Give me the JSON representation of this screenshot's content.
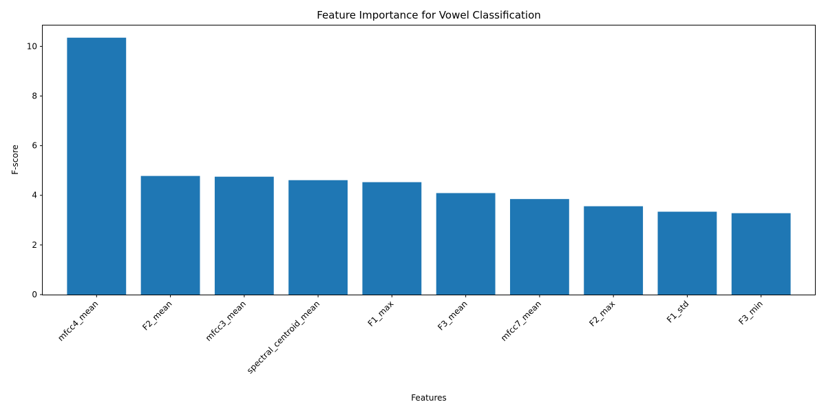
{
  "chart_data": {
    "type": "bar",
    "title": "Feature Importance for Vowel Classification",
    "xlabel": "Features",
    "ylabel": "F-score",
    "categories": [
      "mfcc4_mean",
      "F2_mean",
      "mfcc3_mean",
      "spectral_centroid_mean",
      "F1_max",
      "F3_mean",
      "mfcc7_mean",
      "F2_max",
      "F1_std",
      "F3_min"
    ],
    "values": [
      10.35,
      4.78,
      4.75,
      4.61,
      4.53,
      4.09,
      3.85,
      3.56,
      3.34,
      3.28
    ],
    "ylim": [
      0,
      10.87
    ],
    "yticks": [
      0,
      2,
      4,
      6,
      8,
      10
    ],
    "bar_color": "#1f77b4",
    "grid": false,
    "legend": "none"
  }
}
